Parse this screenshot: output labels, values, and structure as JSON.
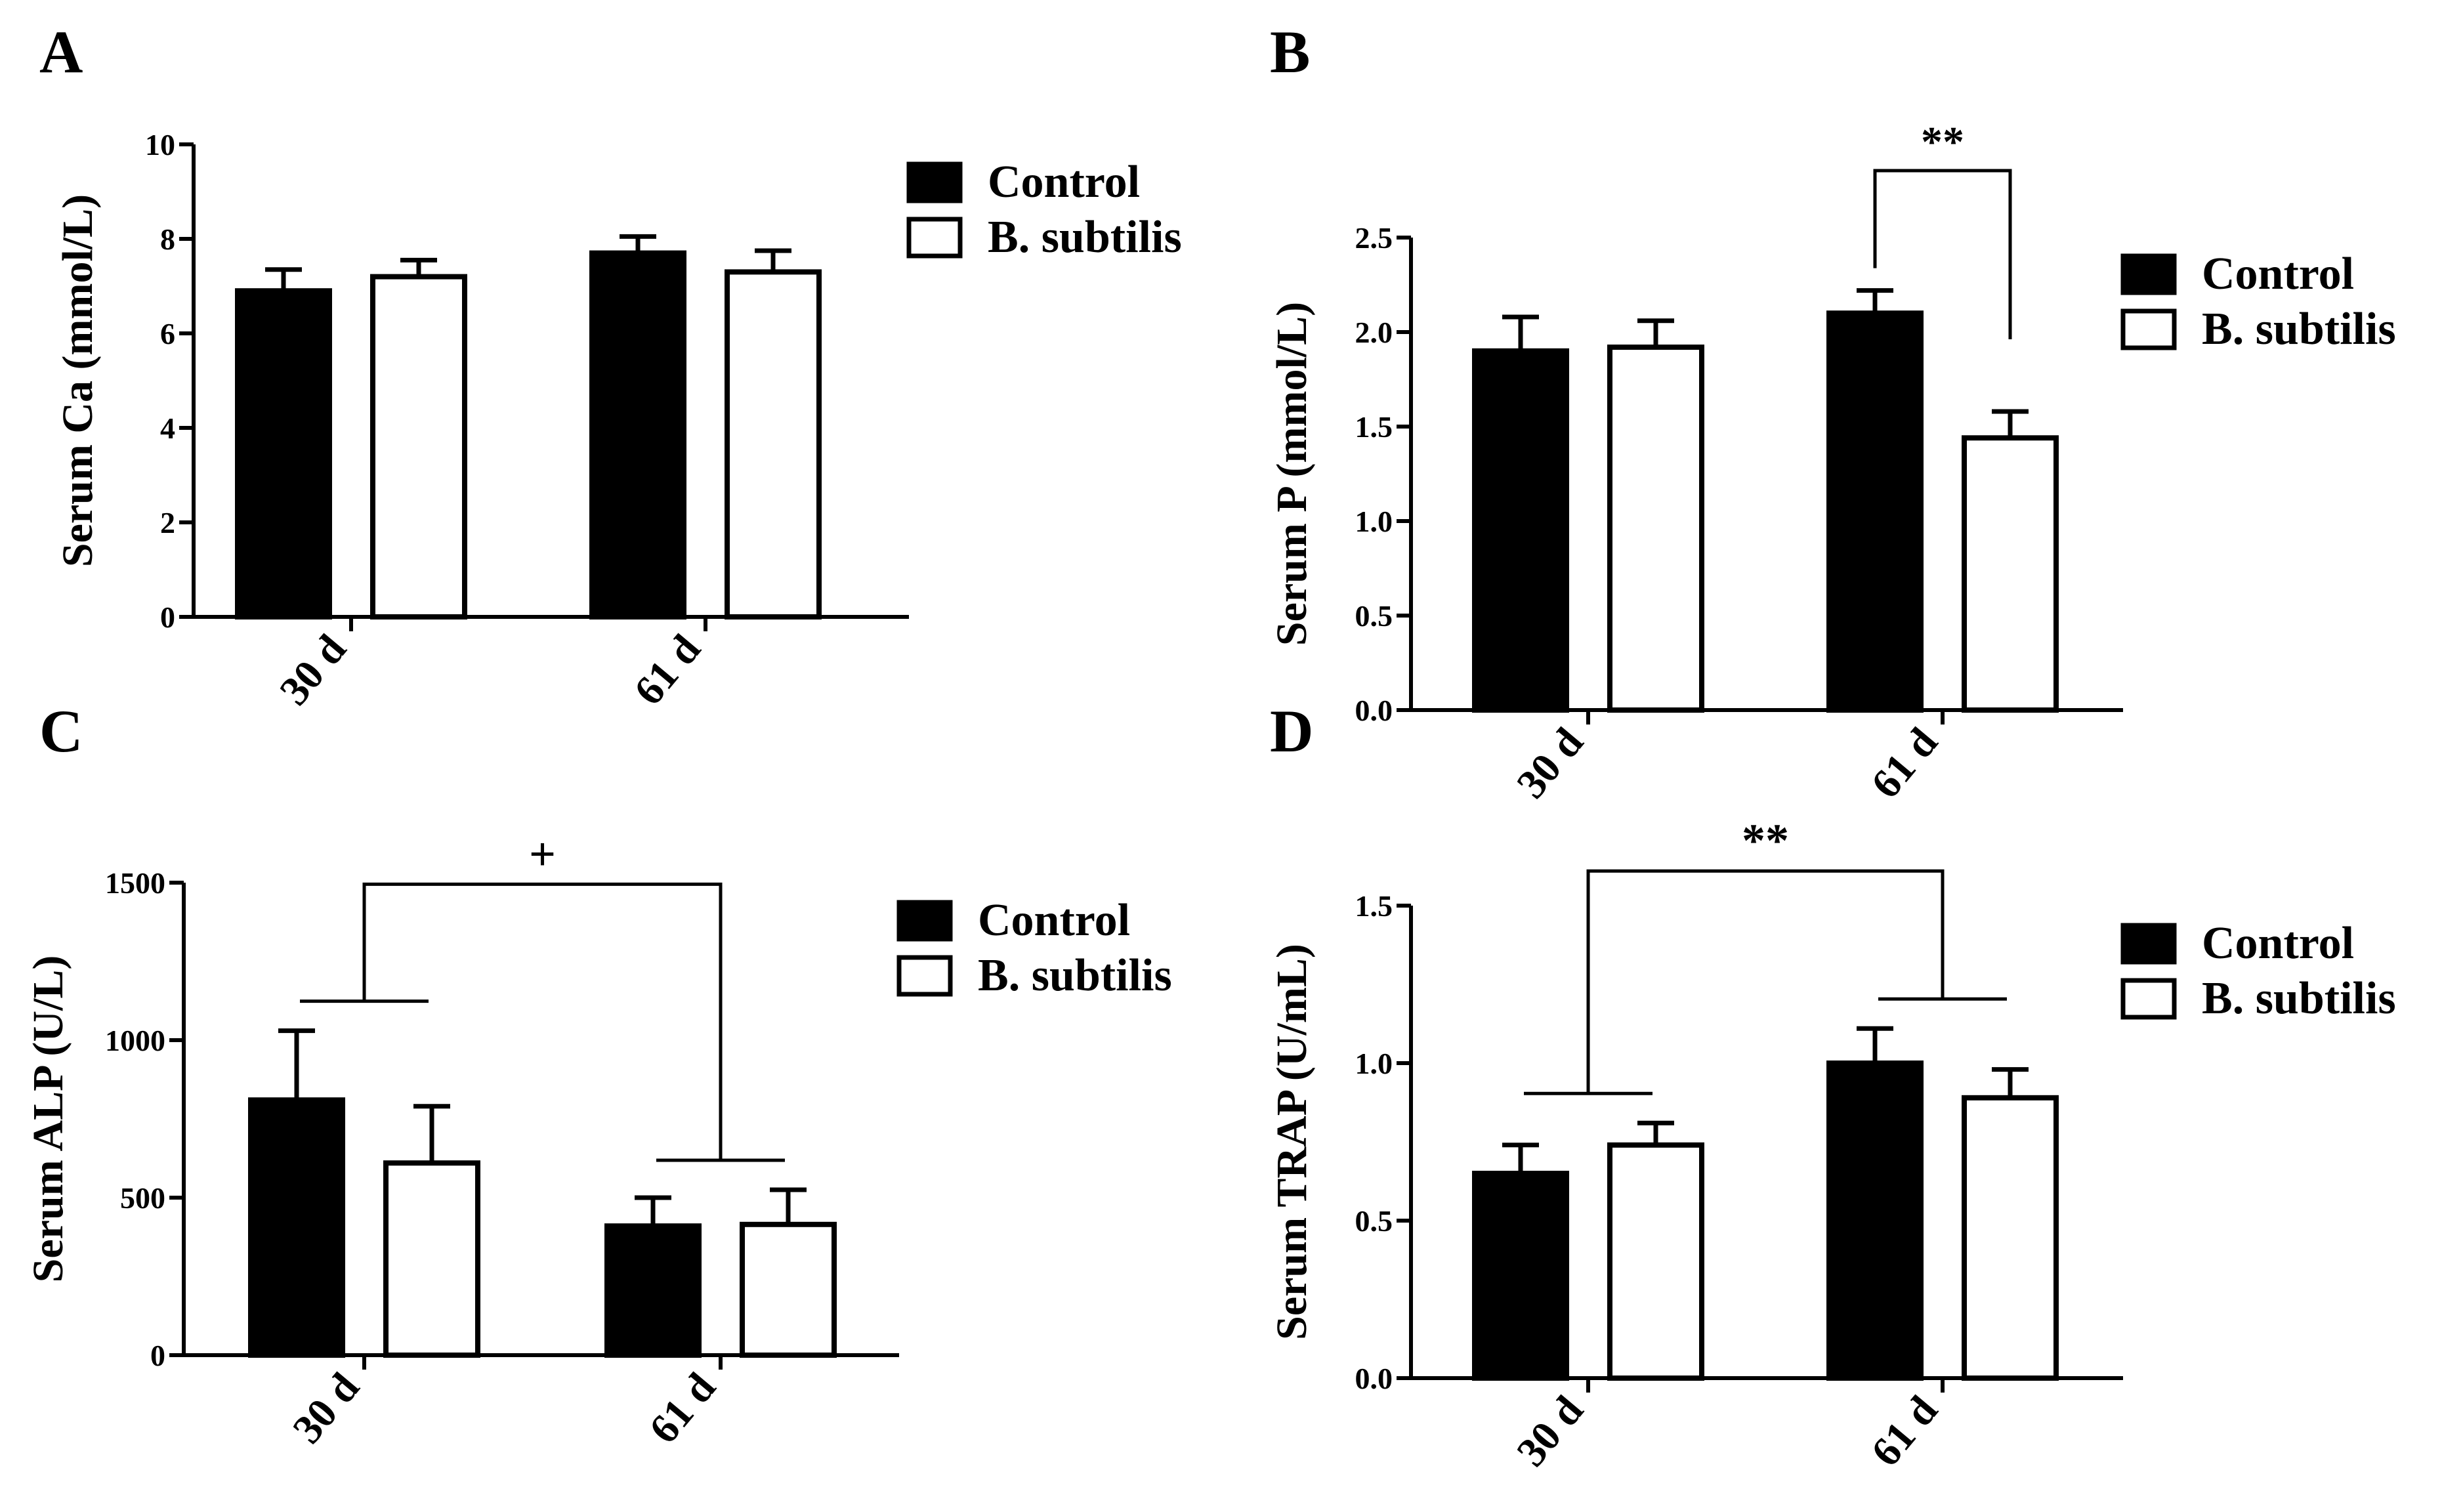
{
  "chart_data": [
    {
      "type": "bar",
      "panel_label": "A",
      "ylabel": "Serum Ca (mmol/L)",
      "categories": [
        "30 d",
        "61 d"
      ],
      "ylim": [
        0,
        10
      ],
      "yticks": [
        "0",
        "2",
        "4",
        "6",
        "8",
        "10"
      ],
      "series": [
        {
          "name": "Control",
          "values": [
            6.9,
            7.7
          ],
          "errors": [
            0.45,
            0.35
          ],
          "fill": "#000000"
        },
        {
          "name": "B. subtilis",
          "values": [
            7.2,
            7.3
          ],
          "errors": [
            0.35,
            0.45
          ],
          "fill": "#ffffff"
        }
      ],
      "legend_position": "top-right",
      "annotations": []
    },
    {
      "type": "bar",
      "panel_label": "B",
      "ylabel": "Serum P (mmol/L)",
      "categories": [
        "30 d",
        "61 d"
      ],
      "ylim": [
        0,
        2.5
      ],
      "yticks": [
        "0.0",
        "0.5",
        "1.0",
        "1.5",
        "2.0",
        "2.5"
      ],
      "series": [
        {
          "name": "Control",
          "values": [
            1.9,
            2.1
          ],
          "errors": [
            0.18,
            0.12
          ],
          "fill": "#000000"
        },
        {
          "name": "B. subtilis",
          "values": [
            1.92,
            1.44
          ],
          "errors": [
            0.14,
            0.14
          ],
          "fill": "#ffffff"
        }
      ],
      "legend_position": "top-right",
      "annotations": [
        {
          "label": "**",
          "type": "bar-pair",
          "category": "61 d"
        }
      ]
    },
    {
      "type": "bar",
      "panel_label": "C",
      "ylabel": "Serum ALP (U/L)",
      "categories": [
        "30 d",
        "61 d"
      ],
      "ylim": [
        0,
        1500
      ],
      "yticks": [
        "0",
        "500",
        "1000",
        "1500"
      ],
      "series": [
        {
          "name": "Control",
          "values": [
            810,
            410
          ],
          "errors": [
            220,
            90
          ],
          "fill": "#000000"
        },
        {
          "name": "B. subtilis",
          "values": [
            610,
            415
          ],
          "errors": [
            180,
            110
          ],
          "fill": "#ffffff"
        }
      ],
      "legend_position": "top-right",
      "annotations": [
        {
          "label": "+",
          "type": "group-pair",
          "y": 1495
        }
      ]
    },
    {
      "type": "bar",
      "panel_label": "D",
      "ylabel": "Serum TRAP (U/mL)",
      "categories": [
        "30 d",
        "61 d"
      ],
      "ylim": [
        0,
        1.5
      ],
      "yticks": [
        "0.0",
        "0.5",
        "1.0",
        "1.5"
      ],
      "series": [
        {
          "name": "Control",
          "values": [
            0.65,
            1.0
          ],
          "errors": [
            0.09,
            0.11
          ],
          "fill": "#000000"
        },
        {
          "name": "B. subtilis",
          "values": [
            0.74,
            0.89
          ],
          "errors": [
            0.07,
            0.09
          ],
          "fill": "#ffffff"
        }
      ],
      "legend_position": "top-right",
      "annotations": [
        {
          "label": "**",
          "type": "group-pair",
          "y": 1.61
        }
      ]
    }
  ]
}
